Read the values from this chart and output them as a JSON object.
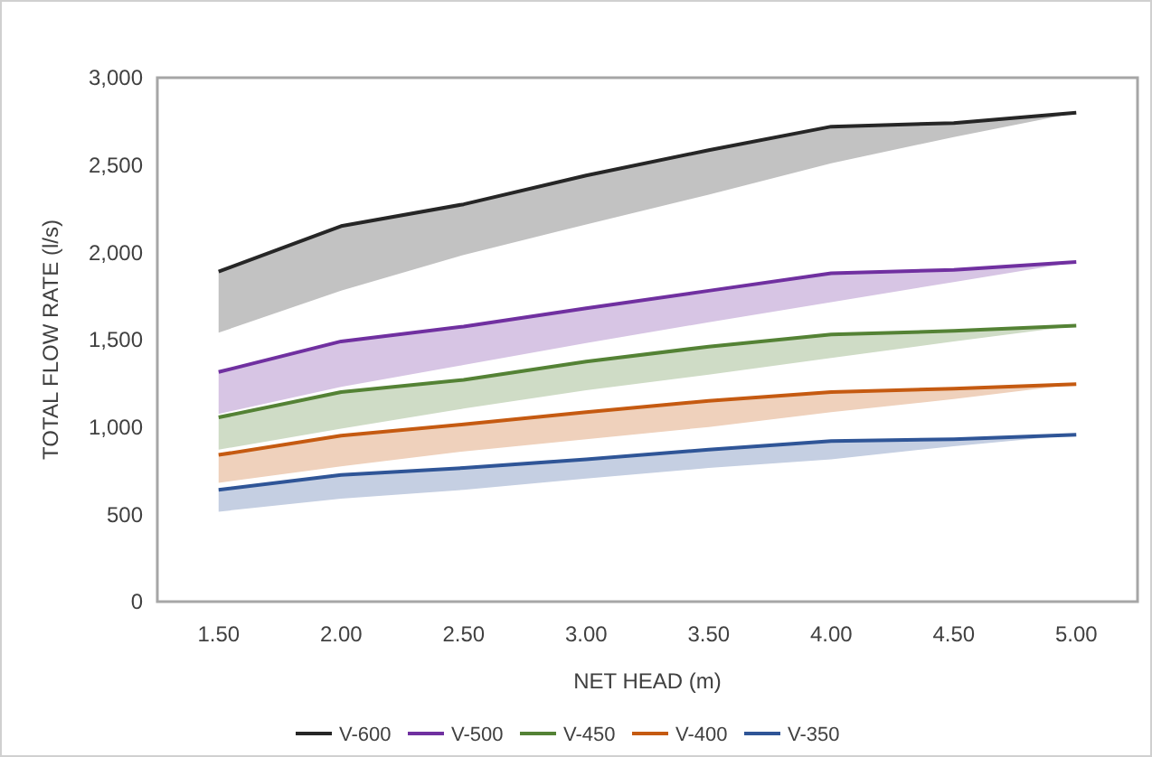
{
  "chart_data": {
    "type": "line",
    "xlabel": "NET HEAD (m)",
    "ylabel": "TOTAL FLOW RATE (l/s)",
    "categories": [
      "1.50",
      "2.00",
      "2.50",
      "3.00",
      "3.50",
      "4.00",
      "4.50",
      "5.00"
    ],
    "ylim": [
      0,
      3000
    ],
    "yticks": [
      0,
      500,
      {
        "value": 1000,
        "label": "1,000"
      },
      {
        "value": 1500,
        "label": "1,500"
      },
      {
        "value": 2000,
        "label": "2,000"
      },
      {
        "value": 2500,
        "label": "2,500"
      },
      {
        "value": 3000,
        "label": "3,000"
      }
    ],
    "grid": false,
    "legend": "bottom",
    "marker": "none",
    "line_style": "solid",
    "series": [
      {
        "name": "V-600",
        "color": "#262626",
        "values": [
          1890,
          2150,
          2275,
          2440,
          2585,
          2720,
          2740,
          2800
        ],
        "lower": [
          1540,
          1780,
          1985,
          2160,
          2330,
          2510,
          2660,
          2800
        ],
        "upper": [
          1890,
          2150,
          2275,
          2440,
          2585,
          2720,
          2740,
          2800
        ]
      },
      {
        "name": "V-500",
        "color": "#7030a0",
        "values": [
          1315,
          1490,
          1575,
          1680,
          1780,
          1880,
          1900,
          1945
        ],
        "lower": [
          1075,
          1230,
          1355,
          1480,
          1600,
          1715,
          1830,
          1945
        ],
        "upper": [
          1315,
          1490,
          1575,
          1680,
          1780,
          1880,
          1900,
          1945
        ]
      },
      {
        "name": "V-450",
        "color": "#548235",
        "values": [
          1055,
          1200,
          1270,
          1375,
          1460,
          1530,
          1550,
          1580
        ],
        "lower": [
          870,
          990,
          1105,
          1210,
          1300,
          1395,
          1490,
          1580
        ],
        "upper": [
          1055,
          1200,
          1270,
          1375,
          1460,
          1530,
          1550,
          1580
        ]
      },
      {
        "name": "V-400",
        "color": "#c55a11",
        "values": [
          840,
          950,
          1015,
          1085,
          1150,
          1200,
          1220,
          1245
        ],
        "lower": [
          680,
          775,
          860,
          930,
          1000,
          1085,
          1160,
          1245
        ],
        "upper": [
          840,
          950,
          1015,
          1085,
          1150,
          1200,
          1220,
          1245
        ]
      },
      {
        "name": "V-350",
        "color": "#2f5597",
        "values": [
          640,
          725,
          765,
          815,
          870,
          920,
          930,
          955
        ],
        "lower": [
          515,
          590,
          640,
          705,
          765,
          815,
          890,
          955
        ],
        "upper": [
          640,
          725,
          765,
          815,
          870,
          920,
          930,
          955
        ]
      }
    ]
  }
}
